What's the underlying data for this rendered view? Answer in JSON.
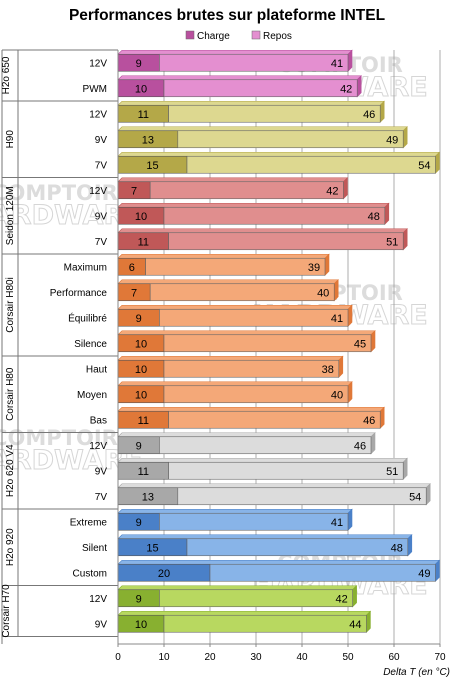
{
  "chart_data": {
    "type": "bar",
    "orientation": "horizontal",
    "stacked": true,
    "title": "Performances brutes sur plateforme INTEL",
    "xlabel": "Delta T (en °C)",
    "xlim": [
      0,
      70
    ],
    "xticks": [
      0,
      10,
      20,
      30,
      40,
      50,
      60,
      70
    ],
    "grid": true,
    "legend_position": "top-center",
    "legend": [
      "Charge",
      "Repos"
    ],
    "watermark": [
      "COMPTOIR",
      "HARDWARE"
    ],
    "groups": [
      {
        "name": "H2o 650",
        "color_dark": "#b8509e",
        "color_light": "#e48fd0",
        "rows": [
          {
            "label": "12V",
            "charge": 9,
            "repos": 41
          },
          {
            "label": "PWM",
            "charge": 10,
            "repos": 42
          }
        ]
      },
      {
        "name": "H90",
        "color_dark": "#b4a848",
        "color_light": "#ddd890",
        "rows": [
          {
            "label": "12V",
            "charge": 11,
            "repos": 46
          },
          {
            "label": "9V",
            "charge": 13,
            "repos": 49
          },
          {
            "label": "7V",
            "charge": 15,
            "repos": 54
          }
        ]
      },
      {
        "name": "Seidon 120M",
        "color_dark": "#c05858",
        "color_light": "#e08e8e",
        "rows": [
          {
            "label": "12V",
            "charge": 7,
            "repos": 42
          },
          {
            "label": "9V",
            "charge": 10,
            "repos": 48
          },
          {
            "label": "7V",
            "charge": 11,
            "repos": 51
          }
        ]
      },
      {
        "name": "Corsair H80i",
        "color_dark": "#e07838",
        "color_light": "#f4a878",
        "rows": [
          {
            "label": "Maximum",
            "charge": 6,
            "repos": 39
          },
          {
            "label": "Performance",
            "charge": 7,
            "repos": 40
          },
          {
            "label": "Équilibré",
            "charge": 9,
            "repos": 41
          },
          {
            "label": "Silence",
            "charge": 10,
            "repos": 45
          }
        ]
      },
      {
        "name": "Corsair H80",
        "color_dark": "#e07838",
        "color_light": "#f4a878",
        "rows": [
          {
            "label": "Haut",
            "charge": 10,
            "repos": 38
          },
          {
            "label": "Moyen",
            "charge": 10,
            "repos": 40
          },
          {
            "label": "Bas",
            "charge": 11,
            "repos": 46
          }
        ]
      },
      {
        "name": "H2o 620 V4",
        "color_dark": "#a8a8a8",
        "color_light": "#dcdcdc",
        "rows": [
          {
            "label": "12V",
            "charge": 9,
            "repos": 46
          },
          {
            "label": "9V",
            "charge": 11,
            "repos": 51
          },
          {
            "label": "7V",
            "charge": 13,
            "repos": 54
          }
        ]
      },
      {
        "name": "H2o 920",
        "color_dark": "#4a80c8",
        "color_light": "#88b4e8",
        "rows": [
          {
            "label": "Extreme",
            "charge": 9,
            "repos": 41
          },
          {
            "label": "Silent",
            "charge": 15,
            "repos": 48
          },
          {
            "label": "Custom",
            "charge": 20,
            "repos": 49
          }
        ]
      },
      {
        "name": "Corsair H70",
        "color_dark": "#88b030",
        "color_light": "#b8d860",
        "rows": [
          {
            "label": "12V",
            "charge": 9,
            "repos": 42
          },
          {
            "label": "9V",
            "charge": 10,
            "repos": 44
          }
        ]
      }
    ]
  }
}
